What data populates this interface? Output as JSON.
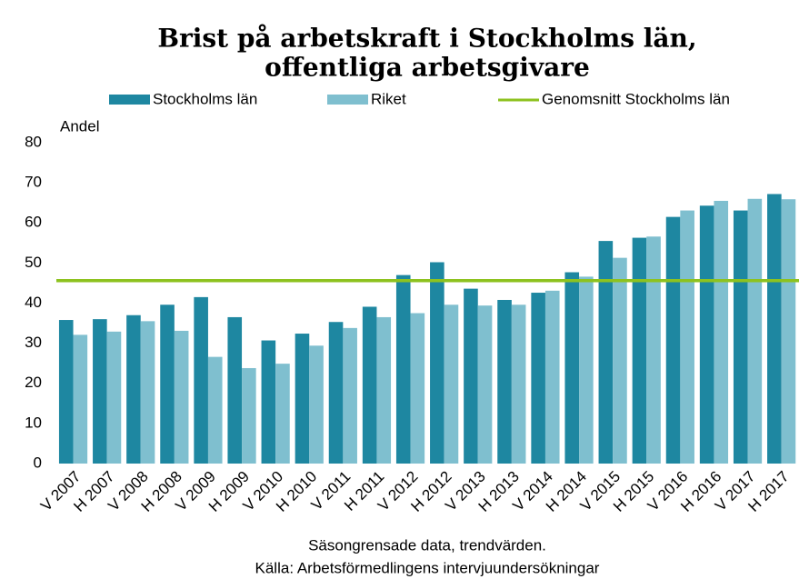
{
  "chart_data": {
    "type": "bar",
    "title": [
      "Brist på arbetskraft i Stockholms län,",
      "offentliga arbetsgivare"
    ],
    "y_label": "Andel",
    "categories": [
      "V 2007",
      "H 2007",
      "V 2008",
      "H 2008",
      "V 2009",
      "H 2009",
      "V 2010",
      "H 2010",
      "V 2011",
      "H 2011",
      "V 2012",
      "H 2012",
      "V 2013",
      "H 2013",
      "V 2014",
      "H 2014",
      "V 2015",
      "H 2015",
      "V 2016",
      "H 2016",
      "V 2017",
      "H 2017"
    ],
    "series": [
      {
        "name": "Stockholms län",
        "color": "#1e87a1",
        "values": [
          35.8,
          36.0,
          37.0,
          39.6,
          41.5,
          36.5,
          30.7,
          32.4,
          35.3,
          39.1,
          47.0,
          50.2,
          43.6,
          40.8,
          42.6,
          47.7,
          55.5,
          56.3,
          61.5,
          64.3,
          63.1,
          67.2
        ]
      },
      {
        "name": "Riket",
        "color": "#7fbfcf",
        "values": [
          32.1,
          32.9,
          35.5,
          33.1,
          26.6,
          23.8,
          24.9,
          29.4,
          33.8,
          36.5,
          37.5,
          39.6,
          39.4,
          39.6,
          43.1,
          46.6,
          51.3,
          56.6,
          63.1,
          65.5,
          66.0,
          65.9
        ]
      }
    ],
    "reference_line": {
      "name": "Genomsnitt Stockholms län",
      "color": "#8dc21f",
      "value": 45.6
    },
    "ylim": [
      0,
      80
    ],
    "yticks": [
      0,
      10,
      20,
      30,
      40,
      50,
      60,
      70,
      80
    ],
    "notes": [
      "Säsongrensade data, trendvärden.",
      "Källa: Arbetsförmedlingens intervjuundersökningar"
    ]
  }
}
